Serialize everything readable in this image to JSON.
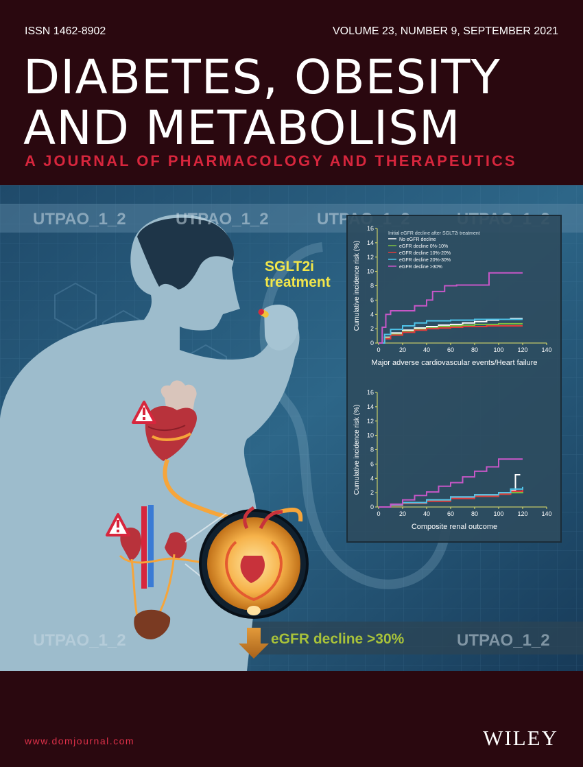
{
  "header": {
    "issn": "ISSN 1462-8902",
    "volume": "VOLUME 23, NUMBER 9, SEPTEMBER 2021",
    "title_line1": "DIABETES, OBESITY",
    "title_line2": "AND METABOLISM",
    "subtitle": "A JOURNAL OF PHARMACOLOGY AND THERAPEUTICS"
  },
  "artwork": {
    "watermark": "UTPAO_1_2",
    "treatment_line1": "SGLT2i",
    "treatment_line2": "treatment",
    "decline_label": "eGFR decline >30%",
    "colors": {
      "background": "#2a080f",
      "accent_red": "#d7263d",
      "treatment_yellow": "#f2e64a",
      "decline_green": "#a8c23a",
      "body": "#9dbccc"
    }
  },
  "chart_data": [
    {
      "type": "line",
      "title": "",
      "legend_title": "Initial eGFR decline after SGLT2i treatment",
      "xlabel": "Major adverse cardiovascular events/Heart failure",
      "ylabel": "Cumulative incidence risk (%)",
      "xlim": [
        0,
        140
      ],
      "ylim": [
        0,
        16
      ],
      "x_ticks": [
        "0",
        "20",
        "40",
        "60",
        "80",
        "100",
        "120",
        "140"
      ],
      "y_ticks": [
        "0",
        "2",
        "4",
        "6",
        "8",
        "10",
        "12",
        "14",
        "16"
      ],
      "series": [
        {
          "name": "No eGFR decline",
          "color": "#ffffff",
          "x": [
            0,
            5,
            10,
            20,
            30,
            40,
            50,
            60,
            70,
            80,
            90,
            100,
            110,
            120
          ],
          "values": [
            0,
            0.8,
            1.4,
            1.8,
            2.1,
            2.3,
            2.5,
            2.6,
            2.8,
            3.0,
            3.2,
            3.3,
            3.4,
            3.4
          ]
        },
        {
          "name": "eGFR decline 0%-10%",
          "color": "#7ec242",
          "x": [
            0,
            5,
            10,
            20,
            30,
            40,
            50,
            60,
            70,
            80,
            90,
            100,
            110,
            120
          ],
          "values": [
            0,
            0.7,
            1.2,
            1.6,
            1.9,
            2.1,
            2.3,
            2.4,
            2.5,
            2.6,
            2.6,
            2.7,
            2.7,
            2.7
          ]
        },
        {
          "name": "eGFR decline 10%-20%",
          "color": "#e23b3b",
          "x": [
            0,
            5,
            10,
            20,
            30,
            40,
            50,
            60,
            70,
            80,
            90,
            100,
            110,
            120
          ],
          "values": [
            0,
            0.6,
            1.1,
            1.5,
            1.8,
            2.0,
            2.1,
            2.2,
            2.3,
            2.3,
            2.4,
            2.4,
            2.4,
            2.4
          ]
        },
        {
          "name": "eGFR decline 20%-30%",
          "color": "#4fc3e8",
          "x": [
            0,
            5,
            10,
            20,
            30,
            40,
            50,
            60,
            70,
            80,
            90,
            100,
            110,
            120
          ],
          "values": [
            0,
            1.2,
            1.9,
            2.4,
            2.8,
            3.1,
            3.1,
            3.2,
            3.2,
            3.3,
            3.3,
            3.3,
            3.3,
            3.3
          ]
        },
        {
          "name": "eGFR decline >30%",
          "color": "#c757c7",
          "x": [
            0,
            3,
            6,
            10,
            20,
            30,
            40,
            45,
            55,
            65,
            75,
            90,
            92,
            120
          ],
          "values": [
            0,
            2.2,
            4.0,
            4.5,
            4.5,
            5.2,
            6.0,
            7.2,
            8.0,
            8.1,
            8.1,
            8.1,
            9.8,
            9.8
          ]
        }
      ]
    },
    {
      "type": "line",
      "title": "",
      "xlabel": "Composite renal outcome",
      "ylabel": "Cumulative incidence risk (%)",
      "xlim": [
        0,
        140
      ],
      "ylim": [
        0,
        16
      ],
      "x_ticks": [
        "0",
        "20",
        "40",
        "60",
        "80",
        "100",
        "120",
        "140"
      ],
      "y_ticks": [
        "0",
        "2",
        "4",
        "6",
        "8",
        "10",
        "12",
        "14",
        "16"
      ],
      "series": [
        {
          "color": "#ffffff",
          "x": [
            0,
            10,
            20,
            40,
            60,
            80,
            100,
            110,
            114,
            114,
            118
          ],
          "values": [
            0,
            0.3,
            0.6,
            1.0,
            1.4,
            1.7,
            2.0,
            2.3,
            2.3,
            4.5,
            4.5
          ]
        },
        {
          "color": "#7ec242",
          "x": [
            0,
            10,
            20,
            40,
            60,
            80,
            100,
            110,
            120
          ],
          "values": [
            0,
            0.3,
            0.5,
            0.9,
            1.2,
            1.5,
            1.8,
            2.0,
            2.1
          ]
        },
        {
          "color": "#e23b3b",
          "x": [
            0,
            10,
            20,
            40,
            60,
            80,
            100,
            110,
            120
          ],
          "values": [
            0,
            0.2,
            0.5,
            0.8,
            1.2,
            1.5,
            1.8,
            2.2,
            2.6
          ]
        },
        {
          "color": "#4fc3e8",
          "x": [
            0,
            10,
            20,
            40,
            60,
            80,
            100,
            110,
            120
          ],
          "values": [
            0,
            0.3,
            0.6,
            1.0,
            1.4,
            1.7,
            2.0,
            2.5,
            2.8
          ]
        },
        {
          "color": "#c757c7",
          "x": [
            0,
            10,
            20,
            30,
            40,
            50,
            60,
            70,
            80,
            90,
            100,
            110,
            120
          ],
          "values": [
            0,
            0.4,
            1.0,
            1.6,
            2.1,
            2.9,
            3.4,
            4.2,
            5.0,
            5.6,
            6.7,
            6.7,
            6.7
          ]
        }
      ]
    }
  ],
  "footer": {
    "url": "www.domjournal.com",
    "publisher": "WILEY"
  }
}
